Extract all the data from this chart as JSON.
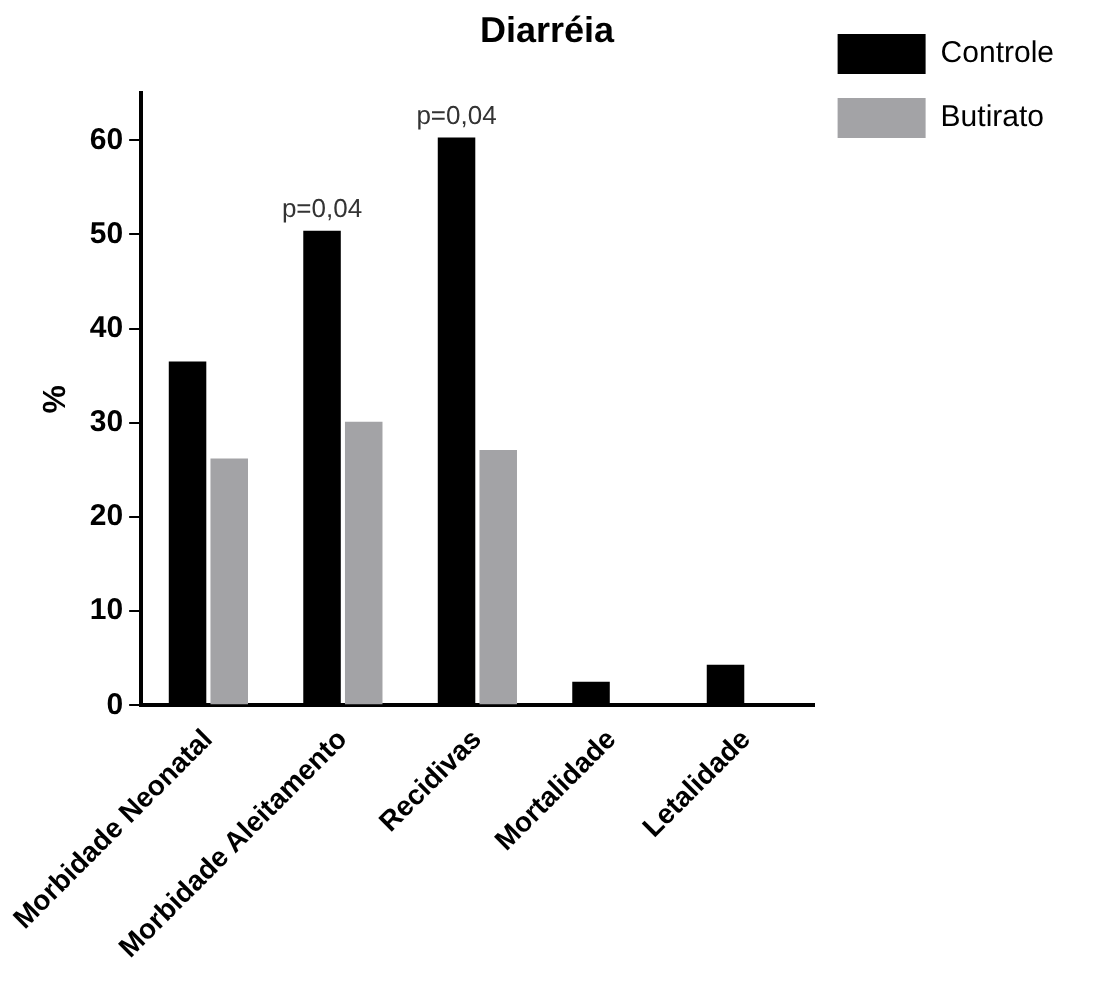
{
  "chart_data": {
    "type": "bar",
    "title": "Diarréia",
    "ylabel": "%",
    "categories": [
      "Morbidade Neonatal",
      "Morbidade Aleitamento",
      "Recidivas",
      "Mortalidade",
      "Letalidade"
    ],
    "series": [
      {
        "name": "Controle",
        "color": "#000000",
        "values": [
          36.5,
          50.4,
          60.3,
          2.5,
          4.3
        ]
      },
      {
        "name": "Butirato",
        "color": "#a3a3a6",
        "values": [
          26.2,
          30.1,
          27.1,
          0,
          0
        ]
      }
    ],
    "ylim": [
      0,
      65
    ],
    "yticks": [
      0,
      10,
      20,
      30,
      40,
      50,
      60
    ],
    "grid": false,
    "legend": "top right",
    "annotations": [
      {
        "text": "p=0,04",
        "x": "Morbidade Aleitamento",
        "y": 50.4
      },
      {
        "text": "p=0,04",
        "x": "Recidivas",
        "y": 60.3
      }
    ]
  }
}
